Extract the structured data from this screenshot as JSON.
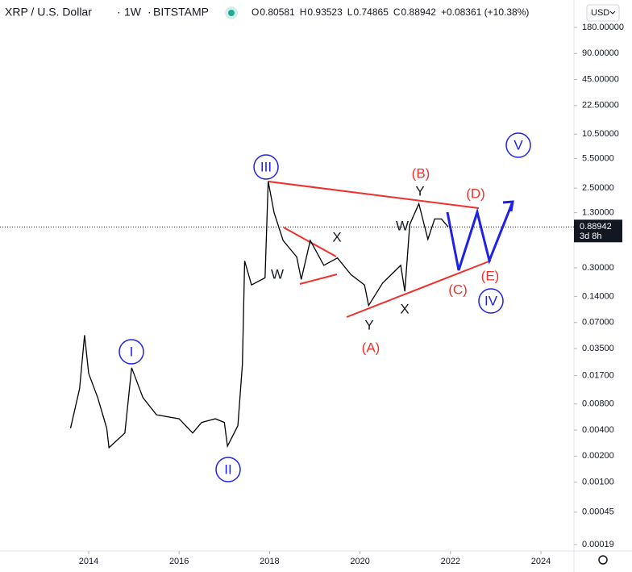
{
  "header": {
    "symbol": "XRP / U.S. Dollar",
    "interval": "1W",
    "exchange": "BITSTAMP",
    "ohlc": [
      {
        "key": "O",
        "value": "0.80581"
      },
      {
        "key": "H",
        "value": "0.93523"
      },
      {
        "key": "L",
        "value": "0.74865"
      },
      {
        "key": "C",
        "value": "0.88942"
      }
    ],
    "change": "+0.08361 (+10.38%)",
    "currency": "USD"
  },
  "chart_data": {
    "type": "line",
    "log_scale": true,
    "color": "#000000",
    "x": [
      2013.6,
      2013.8,
      2013.91,
      2014.0,
      2014.2,
      2014.4,
      2014.45,
      2014.8,
      2014.95,
      2015.2,
      2015.5,
      2016.0,
      2016.3,
      2016.5,
      2016.8,
      2017.0,
      2017.07,
      2017.3,
      2017.4,
      2017.45,
      2017.6,
      2017.9,
      2017.97,
      2018.1,
      2018.3,
      2018.6,
      2018.7,
      2018.9,
      2019.2,
      2019.5,
      2019.8,
      2020.1,
      2020.19,
      2020.5,
      2020.9,
      2020.99,
      2021.1,
      2021.3,
      2021.5,
      2021.65,
      2021.8,
      2021.95
    ],
    "values": [
      0.0042,
      0.012,
      0.05,
      0.018,
      0.0095,
      0.0042,
      0.0025,
      0.0037,
      0.021,
      0.0095,
      0.006,
      0.0054,
      0.0037,
      0.0049,
      0.0054,
      0.0049,
      0.0026,
      0.0045,
      0.023,
      0.36,
      0.19,
      0.23,
      3.0,
      1.3,
      0.62,
      0.4,
      0.22,
      0.62,
      0.32,
      0.39,
      0.25,
      0.19,
      0.11,
      0.2,
      0.32,
      0.16,
      0.95,
      1.65,
      0.64,
      1.1,
      1.1,
      0.88942
    ],
    "last_price": "0.88942",
    "countdown": "3d 8h",
    "xlim": [
      2012.04,
      2024.73
    ],
    "xticks": [
      2014,
      2016,
      2018,
      2020,
      2022,
      2024
    ],
    "ylim": [
      0.00016,
      373
    ],
    "yticks": [
      {
        "value": 180,
        "label": "180.00000"
      },
      {
        "value": 90,
        "label": "90.00000"
      },
      {
        "value": 45,
        "label": "45.00000"
      },
      {
        "value": 22.5,
        "label": "22.50000"
      },
      {
        "value": 10.5,
        "label": "10.50000"
      },
      {
        "value": 5.5,
        "label": "5.50000"
      },
      {
        "value": 2.5,
        "label": "2.50000"
      },
      {
        "value": 1.3,
        "label": "1.30000"
      },
      {
        "value": 0.3,
        "label": "0.30000"
      },
      {
        "value": 0.14,
        "label": "0.14000"
      },
      {
        "value": 0.07,
        "label": "0.07000"
      },
      {
        "value": 0.035,
        "label": "0.03500"
      },
      {
        "value": 0.017,
        "label": "0.01700"
      },
      {
        "value": 0.008,
        "label": "0.00800"
      },
      {
        "value": 0.004,
        "label": "0.00400"
      },
      {
        "value": 0.002,
        "label": "0.00200"
      },
      {
        "value": 0.001,
        "label": "0.00100"
      },
      {
        "value": 0.00045,
        "label": "0.00045"
      },
      {
        "value": 0.00019,
        "label": "0.00019"
      }
    ],
    "annotations": [
      "III",
      "I",
      "II",
      "IV",
      "V",
      "(A)",
      "(B)",
      "(C)",
      "(D)",
      "(E)",
      "Y",
      "W",
      "X",
      "W",
      "Y",
      "X"
    ]
  }
}
